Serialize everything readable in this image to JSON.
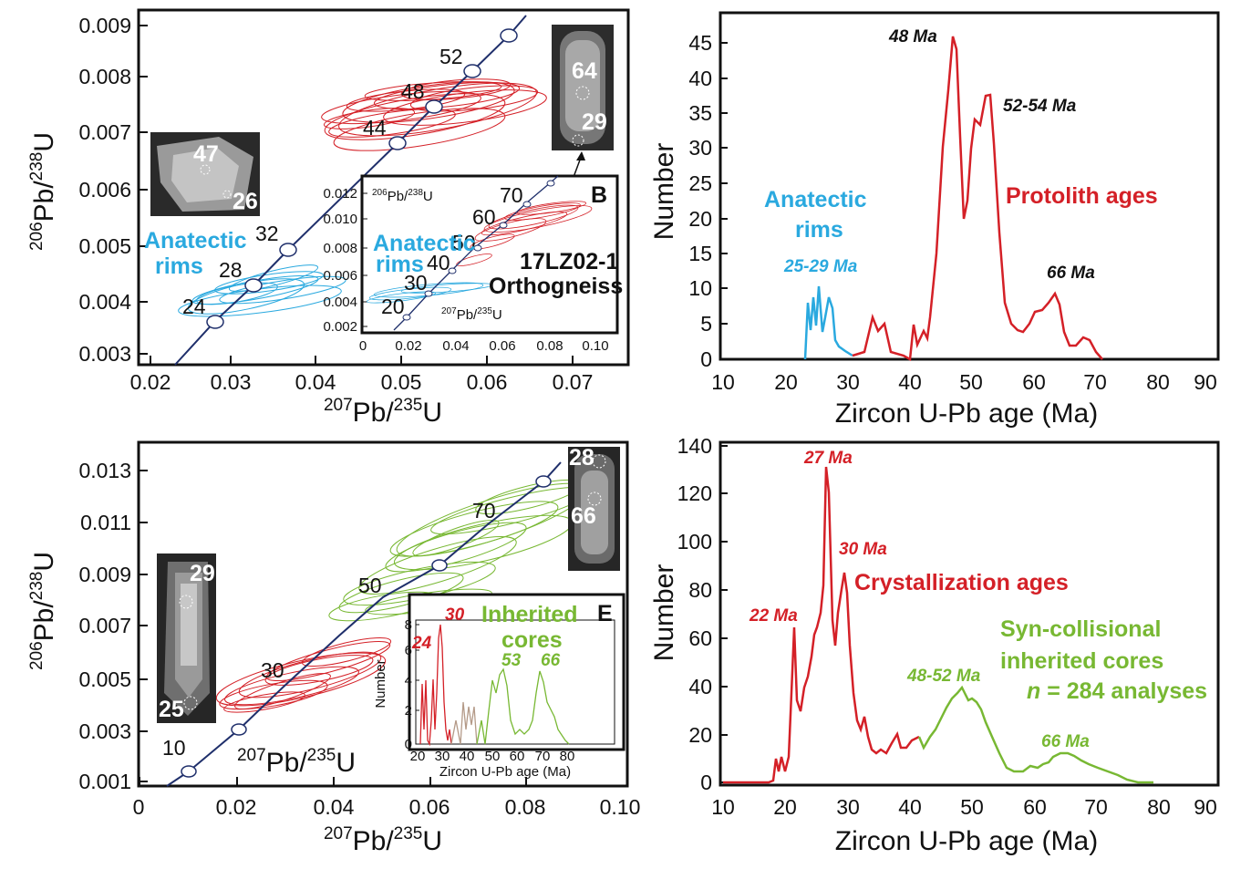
{
  "colors": {
    "red": "#d42027",
    "blue": "#2aa9df",
    "green": "#78b833",
    "concordia": "#1f2f6b",
    "black": "#111111"
  },
  "panel_a": {
    "xlabel": "207Pb/235U",
    "ylabel": "206Pb/238U",
    "x_ticks": [
      "0.02",
      "0.03",
      "0.04",
      "0.05",
      "0.06",
      "0.07"
    ],
    "y_ticks": [
      "0.009",
      "0.008",
      "0.007",
      "0.006",
      "0.005",
      "0.004",
      "0.003"
    ],
    "concordia_ages": [
      "24",
      "28",
      "32",
      "44",
      "48",
      "52"
    ],
    "label_rims": "Anatectic rims",
    "grain_left_spots": [
      "47",
      "26"
    ],
    "grain_right_spots": [
      "64",
      "29"
    ]
  },
  "inset_b": {
    "letter": "B",
    "ylabel": "206Pb/238U",
    "xlabel": "207Pb/235U",
    "x_ticks": [
      "0",
      "0.02",
      "0.04",
      "0.06",
      "0.08",
      "0.10"
    ],
    "y_ticks": [
      "0.012",
      "0.010",
      "0.008",
      "0.006",
      "0.004",
      "0.002"
    ],
    "ages": [
      "20",
      "30",
      "40",
      "50",
      "60",
      "70"
    ],
    "label_rims": "Anatectic rims",
    "sample": "17LZ02-1",
    "rock": "Orthogneiss"
  },
  "panel_b": {
    "ylabel": "Number",
    "xlabel": "Zircon U-Pb age (Ma)",
    "x_ticks": [
      "10",
      "20",
      "30",
      "40",
      "50",
      "60",
      "70",
      "80",
      "90"
    ],
    "y_ticks": [
      "0",
      "5",
      "10",
      "15",
      "20",
      "25",
      "30",
      "35",
      "40",
      "45"
    ],
    "ann_48": "48 Ma",
    "ann_52": "52-54 Ma",
    "ann_66": "66 Ma",
    "ann_25": "25-29 Ma",
    "label_rims_1": "Anatectic",
    "label_rims_2": "rims",
    "label_protolith": "Protolith ages"
  },
  "panel_c": {
    "xlabel": "207Pb/235U",
    "ylabel": "206Pb/238U",
    "x_ticks": [
      "0",
      "0.02",
      "0.04",
      "0.06",
      "0.08",
      "0.10"
    ],
    "y_ticks": [
      "0.013",
      "0.011",
      "0.009",
      "0.007",
      "0.005",
      "0.003",
      "0.001"
    ],
    "ages": [
      "10",
      "30",
      "50",
      "70"
    ],
    "grain_left_spots": [
      "29",
      "25"
    ],
    "grain_right_spots": [
      "28",
      "66"
    ]
  },
  "inset_e": {
    "letter": "E",
    "ylabel": "Number",
    "xlabel": "Zircon U-Pb age (Ma)",
    "x_ticks": [
      "20",
      "30",
      "40",
      "50",
      "60",
      "70",
      "80"
    ],
    "y_ticks": [
      "0",
      "2",
      "4",
      "6",
      "8"
    ],
    "ann_24": "24",
    "ann_30": "30",
    "ann_53": "53",
    "ann_66": "66",
    "label_1": "Inherited",
    "label_2": "cores"
  },
  "panel_d": {
    "ylabel": "Number",
    "xlabel": "Zircon U-Pb age (Ma)",
    "x_ticks": [
      "10",
      "20",
      "30",
      "40",
      "50",
      "60",
      "70",
      "80",
      "90"
    ],
    "y_ticks": [
      "0",
      "20",
      "40",
      "60",
      "80",
      "100",
      "120",
      "140"
    ],
    "ann_27": "27 Ma",
    "ann_30": "30 Ma",
    "ann_22": "22 Ma",
    "ann_48": "48-52 Ma",
    "ann_66": "66 Ma",
    "label_cryst": "Crystallization ages",
    "label_syn_1": "Syn-collisional",
    "label_syn_2": "inherited cores",
    "n_label": "n = 284 analyses"
  },
  "chart_data": [
    {
      "type": "scatter",
      "description_kind": "concordia",
      "xlabel": "207Pb/235U",
      "ylabel": "206Pb/238U",
      "xlim": [
        0.02,
        0.075
      ],
      "ylim": [
        0.003,
        0.009
      ],
      "concordia_ages_Ma": [
        24,
        28,
        32,
        44,
        48,
        52
      ]
    },
    {
      "type": "line",
      "xlabel": "Zircon U-Pb age (Ma)",
      "ylabel": "Number",
      "xlim": [
        10,
        90
      ],
      "ylim": [
        0,
        47
      ],
      "series": [
        {
          "x": [
            23.5,
            24,
            24.5,
            25,
            25.5,
            26,
            26.5,
            27,
            27.5,
            28,
            28.5,
            29,
            30,
            31
          ],
          "y": [
            0,
            8,
            4,
            9,
            5,
            11,
            4,
            6,
            9,
            7,
            3,
            2,
            1,
            0.5
          ]
        },
        {
          "x": [
            31,
            33,
            34,
            35,
            36,
            37,
            39,
            40,
            40.5,
            41,
            42,
            42.5,
            43,
            44,
            45,
            46,
            47,
            47.5,
            48,
            48.5,
            49,
            49.5,
            50,
            51,
            52,
            53,
            53.5,
            54,
            55,
            56,
            57,
            58,
            59,
            60,
            61,
            62,
            63,
            64,
            65,
            66,
            67,
            68,
            69,
            70,
            71,
            72
          ],
          "y": [
            0.5,
            1,
            6,
            4,
            5,
            1,
            0.5,
            0,
            5,
            2,
            4,
            3,
            6,
            15,
            30,
            38,
            45,
            46,
            38,
            25,
            20,
            24,
            30,
            34,
            33,
            38,
            37,
            30,
            18,
            8,
            5,
            4,
            3,
            5,
            7,
            7,
            8,
            10,
            9,
            4,
            2,
            2,
            3,
            3,
            1,
            0
          ]
        }
      ]
    },
    {
      "type": "scatter",
      "description_kind": "concordia",
      "xlabel": "207Pb/235U",
      "ylabel": "206Pb/238U",
      "xlim": [
        0,
        0.1
      ],
      "ylim": [
        0.001,
        0.014
      ],
      "concordia_ages_Ma": [
        10,
        30,
        50,
        70
      ]
    },
    {
      "type": "line",
      "xlabel": "Zircon U-Pb age (Ma)",
      "ylabel": "Number",
      "xlim": [
        10,
        90
      ],
      "ylim": [
        0,
        140
      ],
      "series": [
        {
          "x": [
            10,
            15,
            18,
            19,
            20,
            20.5,
            21,
            22,
            23,
            24,
            25,
            26,
            27,
            28,
            29,
            30,
            31,
            32,
            33,
            34,
            35,
            36,
            37,
            38,
            39,
            40,
            41,
            42
          ],
          "y": [
            0,
            0,
            1,
            8,
            5,
            20,
            22,
            64,
            30,
            45,
            60,
            80,
            130,
            60,
            75,
            86,
            55,
            35,
            25,
            30,
            15,
            12,
            10,
            16,
            12,
            14,
            16,
            18
          ]
        },
        {
          "x": [
            42,
            44,
            46,
            48,
            49,
            50,
            51,
            52,
            53,
            54,
            56,
            58,
            60,
            61,
            62,
            64,
            66,
            68,
            70,
            72,
            74,
            76,
            78
          ],
          "y": [
            18,
            22,
            28,
            35,
            39,
            35,
            37,
            34,
            30,
            22,
            10,
            5,
            7,
            8,
            6,
            12,
            12,
            11,
            8,
            5,
            3,
            1,
            0
          ]
        }
      ]
    }
  ]
}
